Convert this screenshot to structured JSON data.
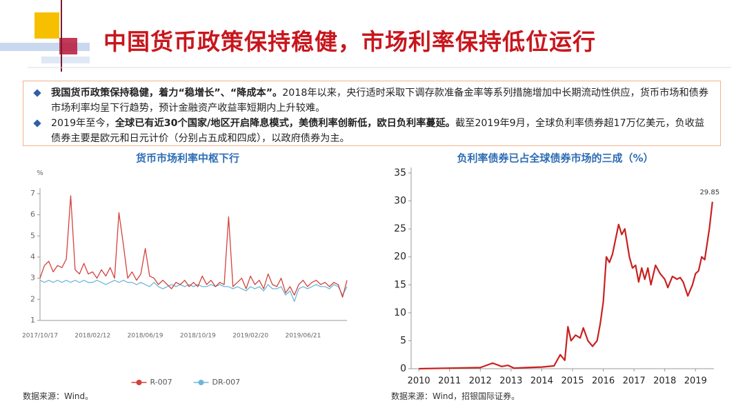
{
  "header": {
    "title": "中国货币政策保持稳健，市场利率保持低位运行"
  },
  "bullets": [
    [
      {
        "text": "我国货币政策保持稳健，着力“稳增长”、“降成本”。",
        "bold": true
      },
      {
        "text": "2018年以来，央行适时采取下调存款准备金率等系列措施增加中长期流动性供应，货币市场和债券市场利率均呈下行趋势，预计金融资产收益率短期内上升较难。",
        "bold": false
      }
    ],
    [
      {
        "text": "2019年至今，",
        "bold": false
      },
      {
        "text": "全球已有近30个国家/地区开启降息模式，美债利率创新低，欧日负利率蔓延。",
        "bold": true
      },
      {
        "text": "截至2019年9月，全球负利率债券超17万亿美元，负收益债券主要是欧元和日元计价（分别占五成和四成），以政府债券为主。",
        "bold": false
      }
    ]
  ],
  "sources": [
    "数据来源：Wind。",
    "数据来源：Wind，招银国际证券。"
  ],
  "chart_data": [
    {
      "type": "line",
      "title": "货币市场利率中枢下行",
      "y_label": "%",
      "categories": [
        "2017/10/17",
        null,
        null,
        null,
        null,
        null,
        null,
        null,
        null,
        null,
        null,
        null,
        "2018/02/12",
        null,
        null,
        null,
        null,
        null,
        null,
        null,
        null,
        null,
        null,
        null,
        "2018/06/19",
        null,
        null,
        null,
        null,
        null,
        null,
        null,
        null,
        null,
        null,
        null,
        "2018/10/19",
        null,
        null,
        null,
        null,
        null,
        null,
        null,
        null,
        null,
        null,
        null,
        "2019/02/20",
        null,
        null,
        null,
        null,
        null,
        null,
        null,
        null,
        null,
        null,
        null,
        "2019/06/21",
        null,
        null,
        null,
        null,
        null,
        null,
        null,
        null,
        null,
        null
      ],
      "series": [
        {
          "name": "R-007",
          "color": "#d2413c",
          "values": [
            3.0,
            3.6,
            3.8,
            3.3,
            3.6,
            3.5,
            3.9,
            6.9,
            3.4,
            3.2,
            3.7,
            3.2,
            3.3,
            3.0,
            3.4,
            3.1,
            3.5,
            3.0,
            6.1,
            4.6,
            3.0,
            3.3,
            2.9,
            3.2,
            4.4,
            3.1,
            3.0,
            2.7,
            2.9,
            2.7,
            2.5,
            2.8,
            2.7,
            2.9,
            2.6,
            2.8,
            2.6,
            3.1,
            2.7,
            2.9,
            2.6,
            2.8,
            2.7,
            5.9,
            2.6,
            2.8,
            3.0,
            2.5,
            3.1,
            2.7,
            2.9,
            2.5,
            3.2,
            2.7,
            2.6,
            3.0,
            2.3,
            2.6,
            2.2,
            2.7,
            2.9,
            2.6,
            2.8,
            2.9,
            2.7,
            2.8,
            2.6,
            2.8,
            2.7,
            2.1,
            2.9
          ]
        },
        {
          "name": "DR-007",
          "color": "#6cb6d8",
          "values": [
            2.9,
            2.8,
            2.9,
            2.8,
            2.9,
            2.8,
            2.9,
            2.8,
            2.9,
            2.8,
            2.9,
            2.8,
            2.8,
            2.9,
            2.8,
            2.7,
            2.8,
            2.9,
            2.8,
            2.9,
            2.8,
            2.8,
            2.7,
            2.8,
            2.7,
            2.6,
            2.8,
            2.6,
            2.5,
            2.6,
            2.7,
            2.6,
            2.7,
            2.6,
            2.7,
            2.6,
            2.7,
            2.6,
            2.6,
            2.7,
            2.6,
            2.7,
            2.6,
            2.6,
            2.5,
            2.6,
            2.5,
            2.4,
            2.6,
            2.5,
            2.6,
            2.4,
            2.7,
            2.5,
            2.5,
            2.6,
            2.2,
            2.4,
            1.9,
            2.5,
            2.6,
            2.5,
            2.6,
            2.7,
            2.6,
            2.6,
            2.5,
            2.7,
            2.6,
            2.2,
            2.6
          ]
        }
      ],
      "ylim": [
        1,
        7
      ],
      "yticks": [
        1,
        2,
        3,
        4,
        5,
        6,
        7
      ],
      "legend": "bottom"
    },
    {
      "type": "line",
      "title": "负利率债券已占全球债券市场的三成（%）",
      "x": [
        2010.0,
        2011.0,
        2012.0,
        2012.4,
        2012.7,
        2012.9,
        2013.1,
        2013.5,
        2014.0,
        2014.4,
        2014.6,
        2014.75,
        2014.85,
        2014.95,
        2015.1,
        2015.25,
        2015.35,
        2015.5,
        2015.65,
        2015.8,
        2015.9,
        2016.0,
        2016.1,
        2016.2,
        2016.3,
        2016.5,
        2016.6,
        2016.7,
        2016.85,
        2016.95,
        2017.05,
        2017.15,
        2017.25,
        2017.35,
        2017.45,
        2017.55,
        2017.7,
        2017.85,
        2018.0,
        2018.1,
        2018.25,
        2018.4,
        2018.5,
        2018.6,
        2018.75,
        2018.9,
        2019.0,
        2019.1,
        2019.2,
        2019.3,
        2019.45,
        2019.55
      ],
      "values": [
        0,
        0.1,
        0.2,
        1.0,
        0.4,
        0.6,
        0.1,
        0.2,
        0.3,
        0.5,
        2.5,
        1.5,
        7.5,
        5,
        6,
        5.5,
        7.3,
        5,
        4.0,
        5,
        8,
        12,
        20,
        19,
        20.5,
        25.8,
        24,
        25,
        20,
        18,
        18.5,
        15.5,
        18,
        16,
        18,
        15,
        18.5,
        17,
        16,
        14.5,
        16.5,
        16,
        16.3,
        15.5,
        13,
        15,
        17,
        17.5,
        20,
        19.5,
        25,
        29.85
      ],
      "color": "#c9201f",
      "xlim": [
        2009.75,
        2019.6
      ],
      "xticks": [
        2010,
        2011,
        2012,
        2013,
        2014,
        2015,
        2016,
        2017,
        2018,
        2019
      ],
      "ylim": [
        0,
        35
      ],
      "yticks": [
        0,
        5,
        10,
        15,
        20,
        25,
        30,
        35
      ]
    }
  ]
}
